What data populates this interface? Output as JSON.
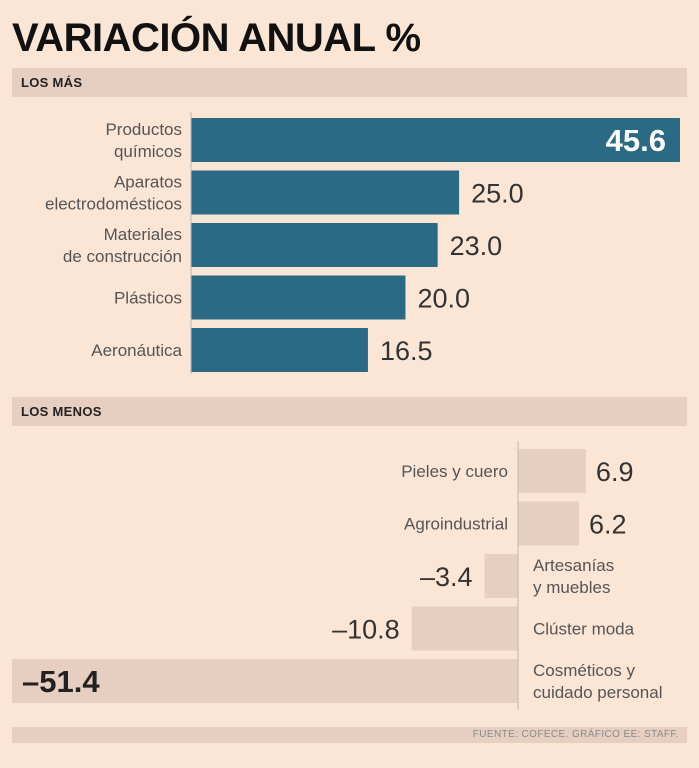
{
  "title": "VARIACIÓN ANUAL %",
  "sections": {
    "top_label": "LOS MÁS",
    "bottom_label": "LOS MENOS"
  },
  "source": "FUENTE: COFECE.  GRÁFICO EE: STAFF.",
  "colors": {
    "top_bar": "#2b6a84",
    "bottom_bar": "#e6cfc0",
    "section_bar": "#e6cfc0",
    "background": "#fbe6d6"
  },
  "chart_data": [
    {
      "type": "bar",
      "orientation": "horizontal",
      "title": "LOS MÁS",
      "categories": [
        [
          "Productos",
          "químicos"
        ],
        [
          "Aparatos",
          "electrodomésticos"
        ],
        [
          "Materiales",
          "de construcción"
        ],
        [
          "Plásticos"
        ],
        [
          "Aeronáutica"
        ]
      ],
      "values": [
        45.6,
        25.0,
        23.0,
        20.0,
        16.5
      ],
      "value_labels": [
        "45.6",
        "25.0",
        "23.0",
        "20.0",
        "16.5"
      ],
      "xlim": [
        0,
        45.6
      ],
      "grid": false
    },
    {
      "type": "bar",
      "orientation": "horizontal",
      "title": "LOS MENOS",
      "categories": [
        [
          "Pieles y cuero"
        ],
        [
          "Agroindustrial"
        ],
        [
          "Artesanías",
          "y muebles"
        ],
        [
          "Clúster moda"
        ],
        [
          "Cosméticos y",
          "cuidado personal"
        ]
      ],
      "values": [
        6.9,
        6.2,
        -3.4,
        -10.8,
        -51.4
      ],
      "value_labels": [
        "6.9",
        "6.2",
        "–3.4",
        "–10.8",
        "–51.4"
      ],
      "xlim": [
        -51.4,
        6.9
      ],
      "grid": false
    }
  ]
}
